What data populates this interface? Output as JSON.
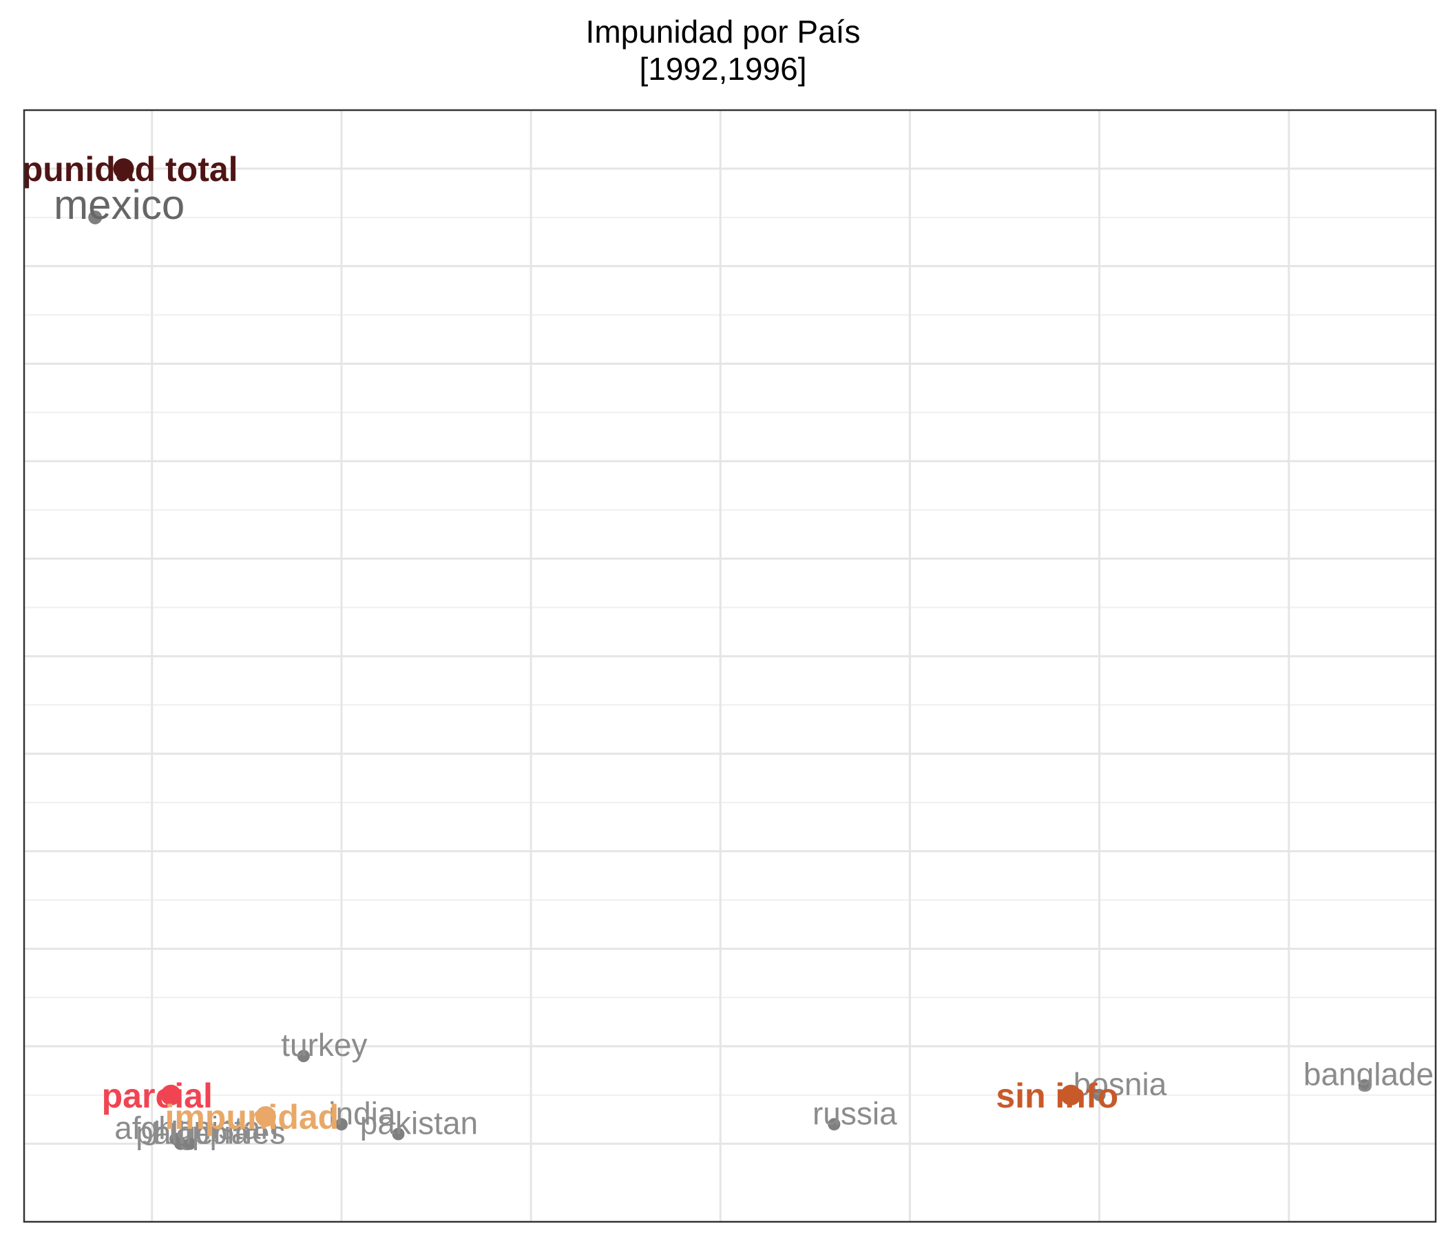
{
  "chart_data": {
    "type": "scatter",
    "title": "Impunidad por País",
    "subtitle": "[1992,1996]",
    "xlabel": "",
    "ylabel": "",
    "grid": true,
    "legend": "none",
    "colors": {
      "country_point": "#7f7f7f",
      "country_label": "#8c8c8c",
      "mexico_label": "#666666",
      "grid": "#e5e5e5",
      "frame": "#333333"
    },
    "country_points": [
      {
        "label": "mexico",
        "x": 1.4,
        "y": 9.5
      },
      {
        "label": "turkey",
        "x": 3.6,
        "y": 0.9
      },
      {
        "label": "india",
        "x": 4.0,
        "y": 0.2
      },
      {
        "label": "pakistan",
        "x": 4.6,
        "y": 0.1
      },
      {
        "label": "algeria",
        "x": 2.3,
        "y": 0.0
      },
      {
        "label": "afghanistan",
        "x": 2.25,
        "y": 0.05
      },
      {
        "label": "philippines",
        "x": 2.4,
        "y": 0.0
      },
      {
        "label": "russia",
        "x": 9.2,
        "y": 0.2
      },
      {
        "label": "bosnia",
        "x": 12.0,
        "y": 0.5
      },
      {
        "label": "bangladesh",
        "x": 14.8,
        "y": 0.6
      }
    ],
    "category_points": [
      {
        "label": "impunidad total",
        "x": 1.7,
        "y": 10.0,
        "color": "#4f1414"
      },
      {
        "label": "parcial",
        "x": 2.2,
        "y": 0.5,
        "color": "#f04452"
      },
      {
        "label": "impunidad",
        "x": 3.2,
        "y": 0.28,
        "color": "#e9a868"
      },
      {
        "label": "sin info",
        "x": 11.7,
        "y": 0.5,
        "color": "#c85a2a"
      }
    ],
    "x_gridlines": [
      2,
      4,
      6,
      8,
      10,
      12,
      14
    ],
    "y_gridlines": [
      0,
      1,
      2,
      3,
      4,
      5,
      6,
      7,
      8,
      9,
      10
    ],
    "xlim": [
      0.65,
      15.55
    ],
    "ylim": [
      -0.8,
      10.6
    ]
  }
}
